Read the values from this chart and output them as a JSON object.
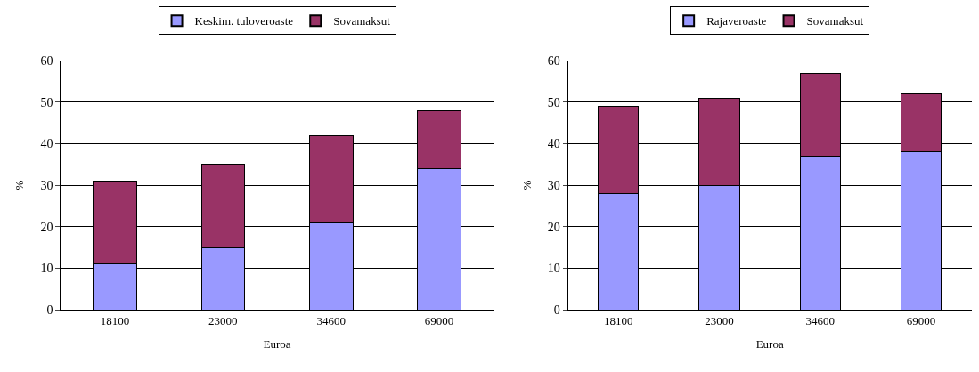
{
  "chart_data": [
    {
      "type": "bar",
      "stacked": true,
      "xlabel": "Euroa",
      "ylabel": "%",
      "categories": [
        "18100",
        "23000",
        "34600",
        "69000"
      ],
      "series": [
        {
          "name": "Keskim. tuloveroaste",
          "color": "#9999ff",
          "values": [
            11,
            15,
            21,
            34
          ]
        },
        {
          "name": "Sovamaksut",
          "color": "#993366",
          "values": [
            20,
            20,
            21,
            14
          ]
        }
      ],
      "ylim": [
        0,
        60
      ],
      "yticks": [
        0,
        10,
        20,
        30,
        40,
        50,
        60
      ],
      "grid": "y",
      "legend": "top"
    },
    {
      "type": "bar",
      "stacked": true,
      "xlabel": "Euroa",
      "ylabel": "%",
      "categories": [
        "18100",
        "23000",
        "34600",
        "69000"
      ],
      "series": [
        {
          "name": "Rajaveroaste",
          "color": "#9999ff",
          "values": [
            28,
            30,
            37,
            38
          ]
        },
        {
          "name": "Sovamaksut",
          "color": "#993366",
          "values": [
            21,
            21,
            20,
            14
          ]
        }
      ],
      "ylim": [
        0,
        60
      ],
      "yticks": [
        0,
        10,
        20,
        30,
        40,
        50,
        60
      ],
      "grid": "y",
      "legend": "top"
    }
  ]
}
